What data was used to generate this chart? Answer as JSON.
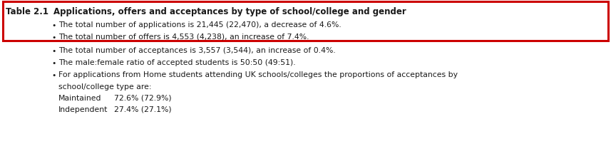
{
  "bg_color": "#ffffff",
  "border_color": "#cc0000",
  "table_label": "Table 2.1",
  "title": "Applications, offers and acceptances by type of school/college and gender",
  "bullet_lines": [
    "The total number of applications is 21,445 (22,470), a decrease of 4.6%.",
    "The total number of offers is 4,553 (4,238), an increase of 7.4%.",
    "The total number of acceptances is 3,557 (3,544), an increase of 0.4%.",
    "The male:female ratio of accepted students is 50:50 (49:51).",
    "For applications from Home students attending UK schools/colleges the proportions of acceptances by",
    "school/college type are:"
  ],
  "highlighted_lines": [
    0,
    1
  ],
  "sub_items": [
    [
      "Maintained",
      "72.6% (72.9%)"
    ],
    [
      "Independent",
      "27.4% (27.1%)"
    ]
  ],
  "text_color": "#1a1a1a",
  "border_lw": 2.2
}
